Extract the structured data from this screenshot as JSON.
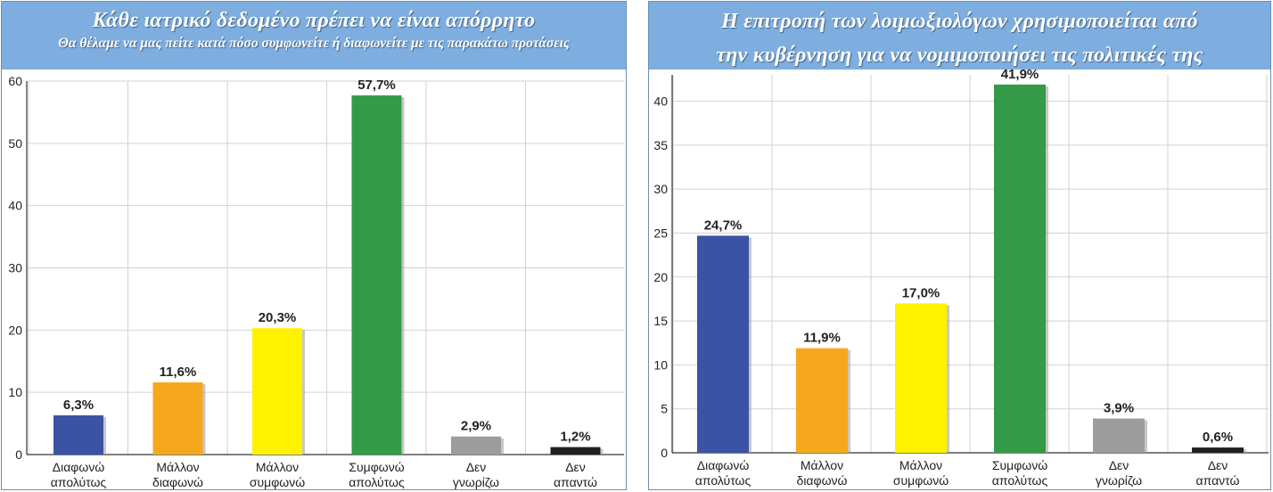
{
  "charts": [
    {
      "title": "Κάθε ιατρικό δεδομένο πρέπει να είναι απόρρητο",
      "subtitle": "Θα θέλαμε να μας πείτε κατά πόσο συμφωνείτε ή διαφωνείτε με τις παρακάτω προτάσεις"
    },
    {
      "title_line1": "Η επιτροπή των λοιμωξιολόγων χρησιμοποιείται από",
      "title_line2": "την κυβέρνηση για να νομιμοποιήσει τις πολιτικές της"
    }
  ],
  "colors": {
    "header": "#7eaee0",
    "bars": [
      "#3a53a4",
      "#f6a81c",
      "#fff200",
      "#339a47",
      "#9c9c9c",
      "#231f20"
    ]
  },
  "chart_data": [
    {
      "type": "bar",
      "title": "Κάθε ιατρικό δεδομένο πρέπει να είναι απόρρητο",
      "subtitle": "Θα θέλαμε να μας πείτε κατά πόσο συμφωνείτε ή διαφωνείτε με τις παρακάτω προτάσεις",
      "categories": [
        [
          "Διαφωνώ",
          "απολύτως"
        ],
        [
          "Μάλλον",
          "διαφωνώ"
        ],
        [
          "Μάλλον",
          "συμφωνώ"
        ],
        [
          "Συμφωνώ",
          "απολύτως"
        ],
        [
          "Δεν",
          "γνωρίζω"
        ],
        [
          "Δεν",
          "απαντώ"
        ]
      ],
      "values": [
        6.3,
        11.6,
        20.3,
        57.7,
        2.9,
        1.2
      ],
      "labels": [
        "6,3%",
        "11,6%",
        "20,3%",
        "57,7%",
        "2,9%",
        "1,2%"
      ],
      "ylim": [
        0,
        60
      ],
      "yticks": [
        0,
        10,
        20,
        30,
        40,
        50,
        60
      ],
      "grid": true
    },
    {
      "type": "bar",
      "title": "Η επιτροπή των λοιμωξιολόγων χρησιμοποιείται από την κυβέρνηση για να νομιμοποιήσει τις πολιτικές της",
      "categories": [
        [
          "Διαφωνώ",
          "απολύτως"
        ],
        [
          "Μάλλον",
          "διαφωνώ"
        ],
        [
          "Μάλλον",
          "συμφωνώ"
        ],
        [
          "Συμφωνώ",
          "απολύτως"
        ],
        [
          "Δεν",
          "γνωρίζω"
        ],
        [
          "Δεν",
          "απαντώ"
        ]
      ],
      "values": [
        24.7,
        11.9,
        17.0,
        41.9,
        3.9,
        0.6
      ],
      "labels": [
        "24,7%",
        "11,9%",
        "17,0%",
        "41,9%",
        "3,9%",
        "0,6%"
      ],
      "ylim": [
        0,
        43
      ],
      "yticks": [
        0,
        5,
        10,
        15,
        20,
        25,
        30,
        35,
        40
      ],
      "grid": true
    }
  ]
}
